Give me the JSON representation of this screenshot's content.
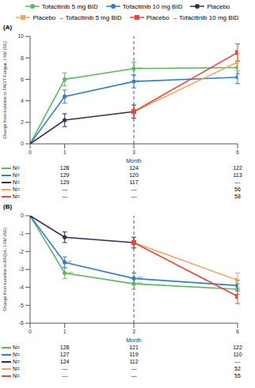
{
  "chart_data": [
    {
      "type": "line",
      "title": "(A)",
      "x_label": "Month",
      "y_label": "Change from baseline in FACIT-Fatigue, LSM (SE)",
      "x": [
        0,
        1,
        3,
        6
      ],
      "xlim": [
        0,
        6
      ],
      "xticks": [
        0,
        1,
        3,
        6
      ],
      "ylim": [
        0,
        10
      ],
      "yticks": [
        0,
        2,
        4,
        6,
        8,
        10
      ],
      "grid": false,
      "legend": "top",
      "vline": 3,
      "series": [
        {
          "name": "Tofacitinib 5 mg BID",
          "color": "#5cb85c",
          "marker": "circle",
          "values": [
            0,
            6.0,
            7.0,
            7.1
          ],
          "errors": [
            null,
            0.6,
            0.6,
            0.6
          ],
          "significance": [
            null,
            "***",
            "***",
            null
          ]
        },
        {
          "name": "Tofacitinib 10 mg BID",
          "color": "#2f80c8",
          "marker": "circle",
          "values": [
            0,
            4.4,
            5.8,
            6.2
          ],
          "errors": [
            null,
            0.6,
            0.6,
            0.6
          ],
          "significance": [
            null,
            "*",
            "*",
            null
          ]
        },
        {
          "name": "Placebo",
          "color": "#3f2a56",
          "marker": "circle",
          "values": [
            0,
            2.2,
            3.0,
            null
          ],
          "errors": [
            null,
            0.6,
            0.6,
            null
          ]
        },
        {
          "name": "Placebo → Tofacitinib 5 mg BID",
          "color": "#f2a65a",
          "marker": "square",
          "values": [
            null,
            null,
            3.0,
            7.6
          ],
          "errors": [
            null,
            null,
            null,
            0.8
          ]
        },
        {
          "name": "Placebo → Tofacitinib 10 mg BID",
          "color": "#e8453c",
          "marker": "square",
          "values": [
            null,
            null,
            3.0,
            8.5
          ],
          "errors": [
            null,
            null,
            null,
            0.8
          ]
        }
      ],
      "n_table": {
        "label": "N=",
        "x": [
          1,
          3,
          6
        ],
        "rows": [
          [
            "128",
            "124",
            "122"
          ],
          [
            "129",
            "120",
            "113"
          ],
          [
            "129",
            "117",
            "---"
          ],
          [
            "---",
            "---",
            "56"
          ],
          [
            "---",
            "---",
            "58"
          ]
        ]
      }
    },
    {
      "type": "line",
      "title": "(B)",
      "x_label": "Month",
      "y_label": "Change from baseline in ASQoL, LSM (SE)",
      "x": [
        0,
        1,
        3,
        6
      ],
      "xlim": [
        0,
        6
      ],
      "xticks": [
        0,
        1,
        3,
        6
      ],
      "ylim": [
        -6,
        0
      ],
      "yticks": [
        -6,
        -5,
        -4,
        -3,
        -2,
        -1,
        0
      ],
      "grid": false,
      "vline": 3,
      "series": [
        {
          "name": "Tofacitinib 5 mg BID",
          "color": "#5cb85c",
          "marker": "circle",
          "values": [
            0,
            -3.2,
            -3.8,
            -4.1
          ],
          "errors": [
            null,
            0.3,
            0.3,
            0.3
          ],
          "significance": [
            null,
            "***",
            "***",
            null
          ]
        },
        {
          "name": "Tofacitinib 10 mg BID",
          "color": "#2f80c8",
          "marker": "circle",
          "values": [
            0,
            -2.6,
            -3.5,
            -3.9
          ],
          "errors": [
            null,
            0.3,
            0.3,
            0.3
          ],
          "significance": [
            null,
            "**",
            "***",
            null
          ]
        },
        {
          "name": "Placebo",
          "color": "#3f2a56",
          "marker": "circle",
          "values": [
            0,
            -1.2,
            -1.5,
            null
          ],
          "errors": [
            null,
            0.3,
            0.3,
            null
          ]
        },
        {
          "name": "Placebo → Tofacitinib 5 mg BID",
          "color": "#f2a65a",
          "marker": "square",
          "values": [
            null,
            null,
            -1.5,
            -3.6
          ],
          "errors": [
            null,
            null,
            null,
            0.4
          ]
        },
        {
          "name": "Placebo → Tofacitinib 10 mg BID",
          "color": "#e8453c",
          "marker": "square",
          "values": [
            null,
            null,
            -1.5,
            -4.5
          ],
          "errors": [
            null,
            null,
            null,
            0.4
          ]
        }
      ],
      "n_table": {
        "label": "N=",
        "x": [
          1,
          3,
          6
        ],
        "rows": [
          [
            "128",
            "121",
            "122"
          ],
          [
            "127",
            "119",
            "110"
          ],
          [
            "124",
            "112",
            "---"
          ],
          [
            "---",
            "---",
            "52"
          ],
          [
            "---",
            "---",
            "55"
          ]
        ]
      }
    }
  ]
}
